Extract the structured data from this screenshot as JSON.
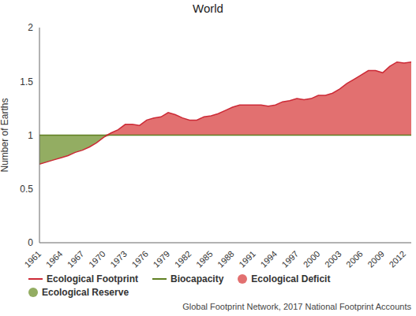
{
  "chart_data": {
    "type": "area",
    "title": "World",
    "y_label": "Number of Earths",
    "source": "Global Footprint Network, 2017 National Footprint Accounts",
    "x": [
      1961,
      1962,
      1963,
      1964,
      1965,
      1966,
      1967,
      1968,
      1969,
      1970,
      1971,
      1972,
      1973,
      1974,
      1975,
      1976,
      1977,
      1978,
      1979,
      1980,
      1981,
      1982,
      1983,
      1984,
      1985,
      1986,
      1987,
      1988,
      1989,
      1990,
      1991,
      1992,
      1993,
      1994,
      1995,
      1996,
      1997,
      1998,
      1999,
      2000,
      2001,
      2002,
      2003,
      2004,
      2005,
      2006,
      2007,
      2008,
      2009,
      2010,
      2011,
      2012,
      2013
    ],
    "series": [
      {
        "name": "Ecological Footprint",
        "color": "#cc2a36",
        "values": [
          0.73,
          0.75,
          0.77,
          0.79,
          0.81,
          0.84,
          0.86,
          0.89,
          0.93,
          0.98,
          1.02,
          1.05,
          1.1,
          1.1,
          1.09,
          1.14,
          1.16,
          1.17,
          1.21,
          1.19,
          1.16,
          1.14,
          1.14,
          1.17,
          1.18,
          1.2,
          1.23,
          1.26,
          1.28,
          1.28,
          1.28,
          1.28,
          1.27,
          1.28,
          1.31,
          1.32,
          1.34,
          1.33,
          1.34,
          1.37,
          1.37,
          1.39,
          1.43,
          1.48,
          1.52,
          1.56,
          1.6,
          1.6,
          1.58,
          1.64,
          1.68,
          1.67,
          1.68
        ]
      },
      {
        "name": "Biocapacity",
        "color": "#5f7f22",
        "values": [
          1,
          1,
          1,
          1,
          1,
          1,
          1,
          1,
          1,
          1,
          1,
          1,
          1,
          1,
          1,
          1,
          1,
          1,
          1,
          1,
          1,
          1,
          1,
          1,
          1,
          1,
          1,
          1,
          1,
          1,
          1,
          1,
          1,
          1,
          1,
          1,
          1,
          1,
          1,
          1,
          1,
          1,
          1,
          1,
          1,
          1,
          1,
          1,
          1,
          1,
          1,
          1,
          1
        ]
      }
    ],
    "areas": [
      {
        "name": "Ecological Deficit",
        "color": "#e27070"
      },
      {
        "name": "Ecological Reserve",
        "color": "#93ad62"
      }
    ],
    "xlim": [
      1961,
      2013
    ],
    "xticks": [
      1961,
      1964,
      1967,
      1970,
      1973,
      1976,
      1979,
      1982,
      1985,
      1988,
      1991,
      1994,
      1997,
      2000,
      2003,
      2006,
      2009,
      2012
    ],
    "ylim": [
      0,
      2
    ],
    "yticks": [
      0,
      0.5,
      1,
      1.5,
      2
    ],
    "grid": false
  }
}
